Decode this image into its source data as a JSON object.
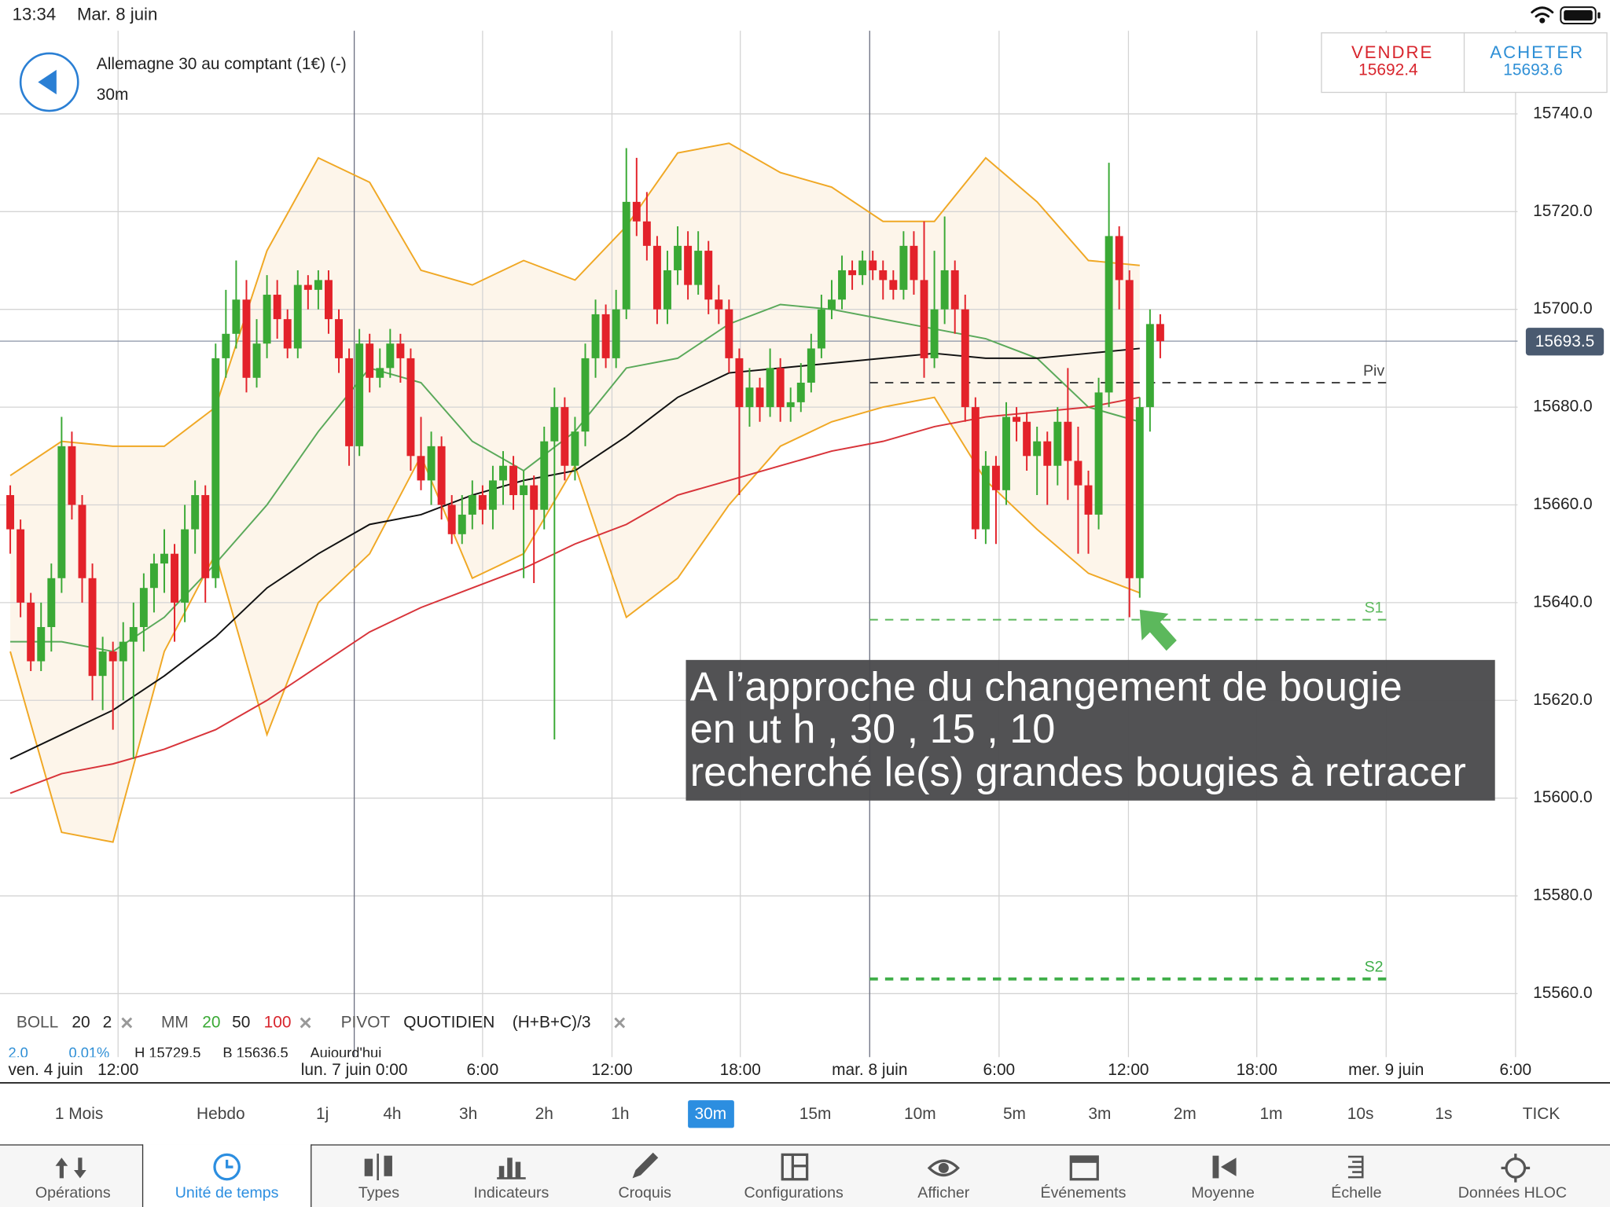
{
  "status_bar": {
    "time": "13:34",
    "date": "Mar. 8 juin"
  },
  "header": {
    "instrument": "Allemagne 30 au comptant (1€) (-)",
    "timeframe": "30m",
    "sell": {
      "label": "VENDRE",
      "price": "15692.4"
    },
    "buy": {
      "label": "ACHETER",
      "price": "15693.6"
    }
  },
  "chart_data": {
    "type": "candlestick",
    "up_color": "#3aa935",
    "down_color": "#e3222a",
    "ylim": [
      15547,
      15757
    ],
    "yticks": [
      {
        "value": 15740,
        "label": "15740.0"
      },
      {
        "value": 15720,
        "label": "15720.0"
      },
      {
        "value": 15700,
        "label": "15700.0"
      },
      {
        "value": 15680,
        "label": "15680.0"
      },
      {
        "value": 15660,
        "label": "15660.0"
      },
      {
        "value": 15640,
        "label": "15640.0"
      },
      {
        "value": 15620,
        "label": "15620.0"
      },
      {
        "value": 15600,
        "label": "15600.0"
      },
      {
        "value": 15580,
        "label": "15580.0"
      },
      {
        "value": 15560,
        "label": "15560.0"
      }
    ],
    "grid": true,
    "xlabels": [
      "ven. 4 juin",
      "12:00",
      "lun. 7 juin 0:00",
      "6:00",
      "12:00",
      "18:00",
      "mar. 8 juin",
      "6:00",
      "12:00",
      "18:00",
      "mer. 9 juin",
      "6:00"
    ],
    "candles": [
      [
        15662,
        15664,
        15650,
        15655
      ],
      [
        15655,
        15657,
        15637,
        15640
      ],
      [
        15640,
        15642,
        15626,
        15628
      ],
      [
        15628,
        15640,
        15626,
        15635
      ],
      [
        15635,
        15648,
        15630,
        15645
      ],
      [
        15645,
        15678,
        15642,
        15672
      ],
      [
        15672,
        15675,
        15657,
        15660
      ],
      [
        15660,
        15662,
        15640,
        15645
      ],
      [
        15645,
        15648,
        15620,
        15625
      ],
      [
        15625,
        15633,
        15618,
        15630
      ],
      [
        15630,
        15632,
        15614,
        15628
      ],
      [
        15628,
        15636,
        15620,
        15632
      ],
      [
        15632,
        15640,
        15608,
        15635
      ],
      [
        15635,
        15646,
        15630,
        15643
      ],
      [
        15643,
        15650,
        15638,
        15648
      ],
      [
        15648,
        15655,
        15642,
        15650
      ],
      [
        15650,
        15652,
        15632,
        15640
      ],
      [
        15640,
        15660,
        15636,
        15655
      ],
      [
        15655,
        15665,
        15650,
        15662
      ],
      [
        15662,
        15664,
        15640,
        15645
      ],
      [
        15645,
        15693,
        15643,
        15690
      ],
      [
        15690,
        15704,
        15686,
        15695
      ],
      [
        15695,
        15710,
        15692,
        15702
      ],
      [
        15702,
        15706,
        15683,
        15686
      ],
      [
        15686,
        15698,
        15684,
        15693
      ],
      [
        15693,
        15707,
        15690,
        15703
      ],
      [
        15703,
        15706,
        15694,
        15698
      ],
      [
        15698,
        15700,
        15690,
        15692
      ],
      [
        15692,
        15708,
        15690,
        15705
      ],
      [
        15705,
        15707,
        15700,
        15704
      ],
      [
        15704,
        15708,
        15700,
        15706
      ],
      [
        15706,
        15708,
        15695,
        15698
      ],
      [
        15698,
        15700,
        15687,
        15690
      ],
      [
        15690,
        15692,
        15668,
        15672
      ],
      [
        15672,
        15696,
        15670,
        15693
      ],
      [
        15693,
        15695,
        15683,
        15686
      ],
      [
        15686,
        15692,
        15684,
        15688
      ],
      [
        15688,
        15696,
        15686,
        15693
      ],
      [
        15693,
        15695,
        15685,
        15690
      ],
      [
        15690,
        15692,
        15667,
        15670
      ],
      [
        15670,
        15678,
        15663,
        15665
      ],
      [
        15665,
        15675,
        15660,
        15672
      ],
      [
        15672,
        15674,
        15657,
        15660
      ],
      [
        15660,
        15662,
        15652,
        15654
      ],
      [
        15654,
        15662,
        15652,
        15658
      ],
      [
        15658,
        15665,
        15655,
        15662
      ],
      [
        15662,
        15664,
        15656,
        15659
      ],
      [
        15659,
        15668,
        15655,
        15665
      ],
      [
        15665,
        15671,
        15660,
        15668
      ],
      [
        15668,
        15670,
        15659,
        15662
      ],
      [
        15662,
        15667,
        15645,
        15664
      ],
      [
        15664,
        15666,
        15644,
        15659
      ],
      [
        15659,
        15676,
        15655,
        15673
      ],
      [
        15673,
        15684,
        15612,
        15680
      ],
      [
        15680,
        15682,
        15665,
        15668
      ],
      [
        15668,
        15678,
        15665,
        15675
      ],
      [
        15675,
        15693,
        15672,
        15690
      ],
      [
        15690,
        15702,
        15686,
        15699
      ],
      [
        15699,
        15701,
        15688,
        15690
      ],
      [
        15690,
        15704,
        15688,
        15700
      ],
      [
        15700,
        15733,
        15698,
        15722
      ],
      [
        15722,
        15731,
        15715,
        15718
      ],
      [
        15718,
        15724,
        15710,
        15713
      ],
      [
        15713,
        15715,
        15697,
        15700
      ],
      [
        15700,
        15712,
        15697,
        15708
      ],
      [
        15708,
        15717,
        15705,
        15713
      ],
      [
        15713,
        15716,
        15702,
        15705
      ],
      [
        15705,
        15716,
        15703,
        15712
      ],
      [
        15712,
        15714,
        15699,
        15702
      ],
      [
        15702,
        15705,
        15697,
        15700
      ],
      [
        15700,
        15702,
        15687,
        15690
      ],
      [
        15690,
        15692,
        15662,
        15680
      ],
      [
        15680,
        15688,
        15676,
        15684
      ],
      [
        15684,
        15686,
        15677,
        15680
      ],
      [
        15680,
        15692,
        15678,
        15688
      ],
      [
        15688,
        15690,
        15677,
        15680
      ],
      [
        15680,
        15684,
        15677,
        15681
      ],
      [
        15681,
        15689,
        15679,
        15685
      ],
      [
        15685,
        15695,
        15683,
        15692
      ],
      [
        15692,
        15703,
        15690,
        15700
      ],
      [
        15700,
        15706,
        15698,
        15702
      ],
      [
        15702,
        15711,
        15700,
        15708
      ],
      [
        15708,
        15710,
        15704,
        15707
      ],
      [
        15707,
        15712,
        15705,
        15710
      ],
      [
        15710,
        15712,
        15706,
        15708
      ],
      [
        15708,
        15710,
        15702,
        15706
      ],
      [
        15706,
        15708,
        15702,
        15704
      ],
      [
        15704,
        15716,
        15702,
        15713
      ],
      [
        15713,
        15716,
        15703,
        15706
      ],
      [
        15706,
        15718,
        15686,
        15690
      ],
      [
        15690,
        15712,
        15688,
        15700
      ],
      [
        15700,
        15719,
        15697,
        15708
      ],
      [
        15708,
        15710,
        15695,
        15700
      ],
      [
        15700,
        15703,
        15677,
        15680
      ],
      [
        15680,
        15682,
        15653,
        15655
      ],
      [
        15655,
        15671,
        15652,
        15668
      ],
      [
        15668,
        15670,
        15652,
        15663
      ],
      [
        15663,
        15681,
        15660,
        15678
      ],
      [
        15678,
        15680,
        15673,
        15677
      ],
      [
        15677,
        15679,
        15667,
        15670
      ],
      [
        15670,
        15676,
        15662,
        15673
      ],
      [
        15673,
        15675,
        15660,
        15668
      ],
      [
        15668,
        15680,
        15664,
        15677
      ],
      [
        15677,
        15688,
        15661,
        15669
      ],
      [
        15669,
        15676,
        15650,
        15664
      ],
      [
        15664,
        15667,
        15650,
        15658
      ],
      [
        15658,
        15686,
        15655,
        15683
      ],
      [
        15683,
        15730,
        15680,
        15715
      ],
      [
        15715,
        15717,
        15700,
        15706
      ],
      [
        15706,
        15708,
        15637,
        15645
      ],
      [
        15645,
        15682,
        15641,
        15680
      ],
      [
        15680,
        15700,
        15675,
        15697
      ],
      [
        15697,
        15699,
        15690,
        15693.5
      ]
    ],
    "bands": {
      "fill": "#fdf5ea",
      "color": "#f0a825",
      "upper": [
        15666,
        15673,
        15672,
        15672,
        15680,
        15712,
        15731,
        15726,
        15708,
        15705,
        15710,
        15706,
        15717,
        15732,
        15734,
        15728,
        15725,
        15718,
        15718,
        15731,
        15722,
        15710,
        15709
      ],
      "lower": [
        15630,
        15593,
        15591,
        15630,
        15650,
        15613,
        15640,
        15650,
        15670,
        15645,
        15650,
        15668,
        15637,
        15645,
        15660,
        15672,
        15677,
        15680,
        15682,
        15665,
        15655,
        15646,
        15642
      ]
    },
    "averages": [
      {
        "color": "#5aa95a",
        "values": [
          15632,
          15632,
          15630,
          15637,
          15648,
          15660,
          15675,
          15688,
          15685,
          15673,
          15667,
          15675,
          15688,
          15690,
          15697,
          15701,
          15700,
          15698,
          15696,
          15694,
          15690,
          15680,
          15677
        ]
      },
      {
        "color": "#111111",
        "values": [
          15608,
          15613,
          15618,
          15625,
          15633,
          15643,
          15650,
          15656,
          15658,
          15662,
          15665,
          15667,
          15674,
          15682,
          15687,
          15688,
          15689,
          15690,
          15691,
          15690,
          15690,
          15691,
          15692
        ]
      },
      {
        "color": "#d8343a",
        "values": [
          15601,
          15605,
          15607,
          15610,
          15614,
          15620,
          15627,
          15634,
          15639,
          15643,
          15647,
          15652,
          15656,
          15662,
          15665,
          15668,
          15671,
          15673,
          15676,
          15678,
          15679,
          15680,
          15682
        ]
      }
    ],
    "pivots": [
      {
        "label": "Piv",
        "value": 15685,
        "color": "#444444",
        "width": 1.5
      },
      {
        "label": "S1",
        "value": 15636.5,
        "color": "#5cb85c",
        "width": 1.5
      },
      {
        "label": "S2",
        "value": 15563,
        "color": "#3fae49",
        "width": 3
      }
    ],
    "last_price": {
      "value": 15693.5,
      "label": "15693.5"
    },
    "annotation": [
      "A l’approche du changement de bougie",
      "en ut h , 30 , 15 , 10",
      "recherché le(s) grandes bougies à retracer"
    ]
  },
  "legend": {
    "boll": [
      "BOLL",
      "20",
      "2"
    ],
    "mm": [
      "MM",
      "20",
      "50",
      "100"
    ],
    "pivot": [
      "PIVOT",
      "QUOTIDIEN",
      "(H+B+C)/3"
    ],
    "stats": [
      "2.0",
      "0.01%",
      "H 15729.5",
      "B 15636.5",
      "Aujourd'hui"
    ]
  },
  "timeframes": {
    "items": [
      "1 Mois",
      "Hebdo",
      "1j",
      "4h",
      "3h",
      "2h",
      "1h",
      "30m",
      "15m",
      "10m",
      "5m",
      "3m",
      "2m",
      "1m",
      "10s",
      "1s",
      "TICK"
    ],
    "selected": 7
  },
  "tabs": {
    "items": [
      "Opérations",
      "Unité de temps",
      "Types",
      "Indicateurs",
      "Croquis",
      "Configurations",
      "Afficher",
      "Événements",
      "Moyenne",
      "Échelle",
      "Données HLOC"
    ],
    "selected": 1
  }
}
